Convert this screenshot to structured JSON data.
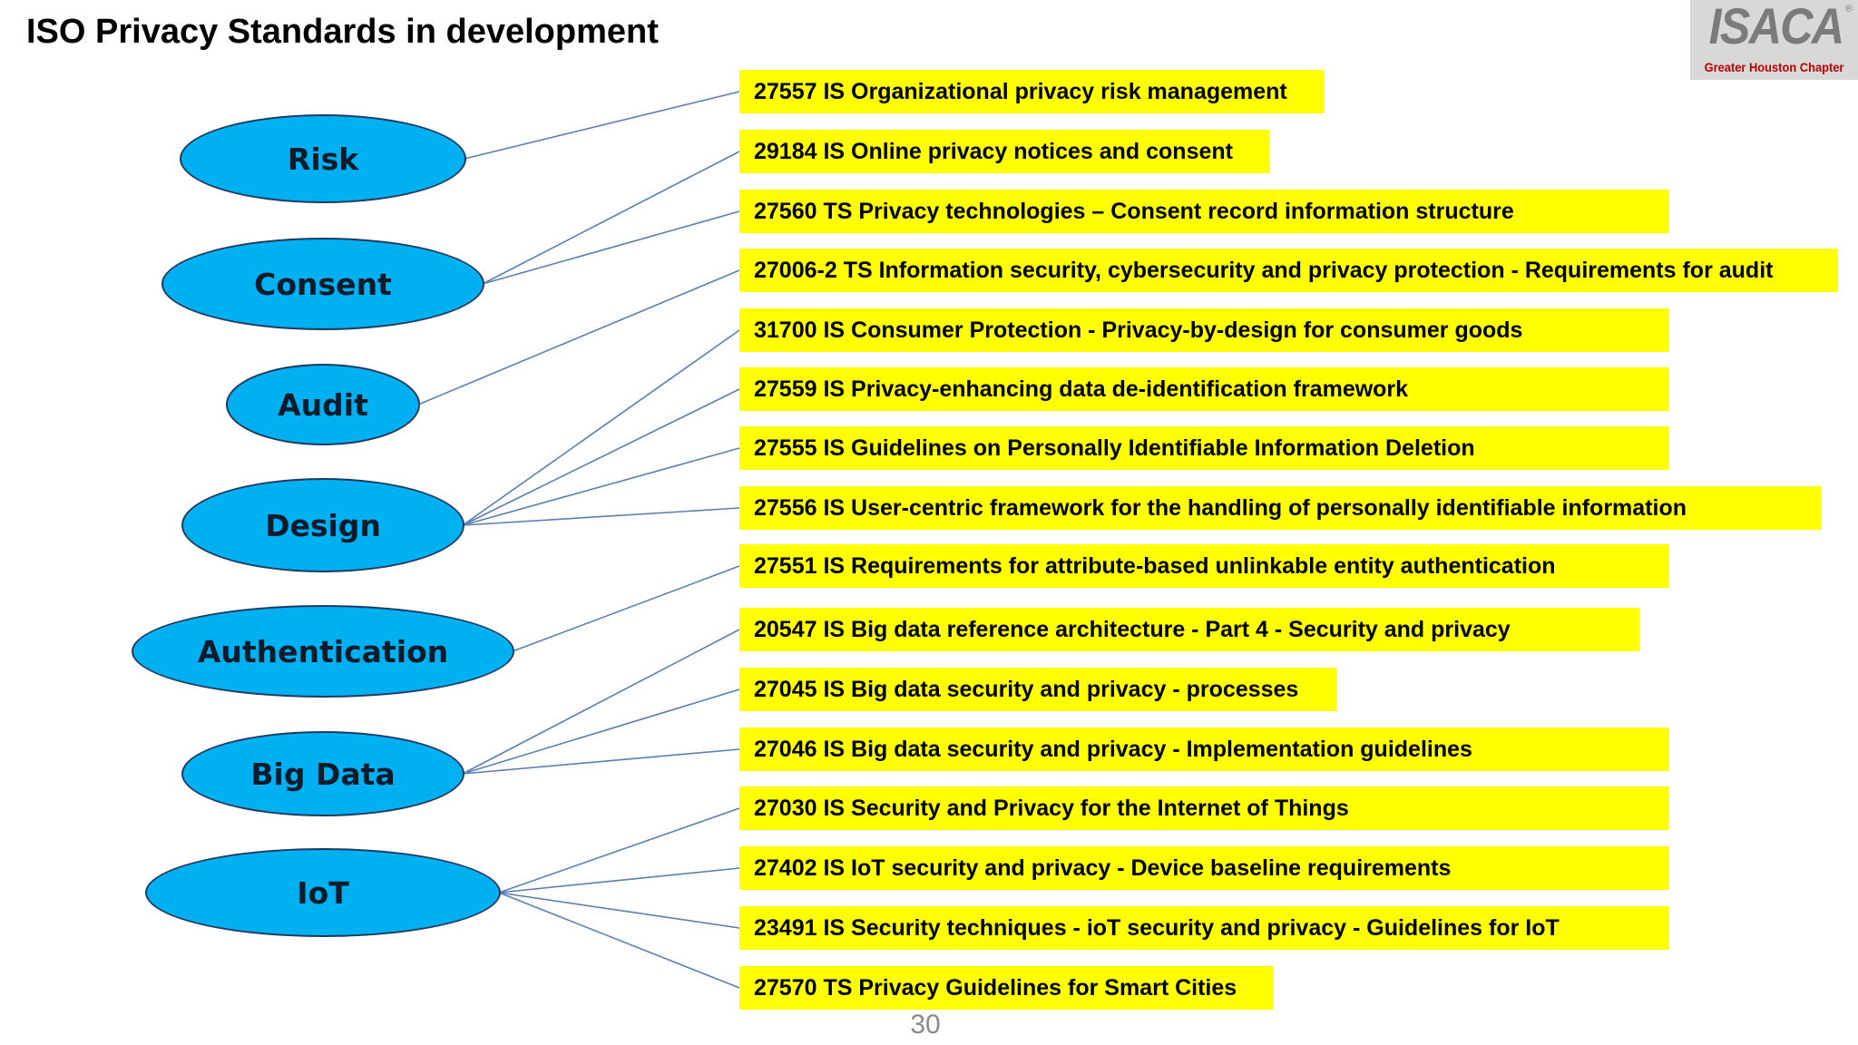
{
  "title": "ISO Privacy Standards in development",
  "logo": {
    "text": "ISACA",
    "registered": "®",
    "subtitle": "Greater Houston Chapter"
  },
  "page_number": "30",
  "colors": {
    "node_fill": "#00b0f0",
    "node_border": "#1f3a5f",
    "standard_fill": "#ffff00",
    "connector": "#5b7fb0"
  },
  "categories": [
    {
      "id": "risk",
      "label": "Risk"
    },
    {
      "id": "consent",
      "label": "Consent"
    },
    {
      "id": "audit",
      "label": "Audit"
    },
    {
      "id": "design",
      "label": "Design"
    },
    {
      "id": "authentication",
      "label": "Authentication"
    },
    {
      "id": "big-data",
      "label": "Big Data"
    },
    {
      "id": "iot",
      "label": "IoT"
    }
  ],
  "standards": [
    {
      "label": "27557 IS Organizational privacy risk management"
    },
    {
      "label": "29184 IS Online privacy notices and consent"
    },
    {
      "label": "27560 TS Privacy technologies – Consent record information structure"
    },
    {
      "label": "27006-2 TS Information security, cybersecurity and privacy protection - Requirements for audit"
    },
    {
      "label": "31700 IS Consumer Protection - Privacy-by-design for consumer goods"
    },
    {
      "label": "27559 IS Privacy-enhancing data de-identification framework"
    },
    {
      "label": "27555 IS Guidelines on Personally Identifiable Information Deletion"
    },
    {
      "label": "27556 IS User-centric framework for the handling of personally identifiable information"
    },
    {
      "label": "27551 IS Requirements for attribute-based unlinkable entity authentication"
    },
    {
      "label": "20547 IS Big data reference architecture - Part 4 - Security and privacy"
    },
    {
      "label": "27045 IS Big data security and privacy - processes"
    },
    {
      "label": "27046 IS Big data security and privacy - Implementation guidelines"
    },
    {
      "label": "27030 IS Security and Privacy for the Internet of Things"
    },
    {
      "label": "27402 IS IoT security and privacy - Device baseline requirements"
    },
    {
      "label": "23491 IS Security techniques - ioT security and privacy - Guidelines for IoT"
    },
    {
      "label": "27570 TS Privacy Guidelines for Smart Cities"
    }
  ],
  "links": [
    {
      "from": "risk",
      "to": 0
    },
    {
      "from": "consent",
      "to": 1
    },
    {
      "from": "consent",
      "to": 2
    },
    {
      "from": "audit",
      "to": 3
    },
    {
      "from": "design",
      "to": 4
    },
    {
      "from": "design",
      "to": 5
    },
    {
      "from": "design",
      "to": 6
    },
    {
      "from": "design",
      "to": 7
    },
    {
      "from": "authentication",
      "to": 8
    },
    {
      "from": "big-data",
      "to": 9
    },
    {
      "from": "big-data",
      "to": 10
    },
    {
      "from": "big-data",
      "to": 11
    },
    {
      "from": "iot",
      "to": 12
    },
    {
      "from": "iot",
      "to": 13
    },
    {
      "from": "iot",
      "to": 14
    },
    {
      "from": "iot",
      "to": 15
    }
  ]
}
